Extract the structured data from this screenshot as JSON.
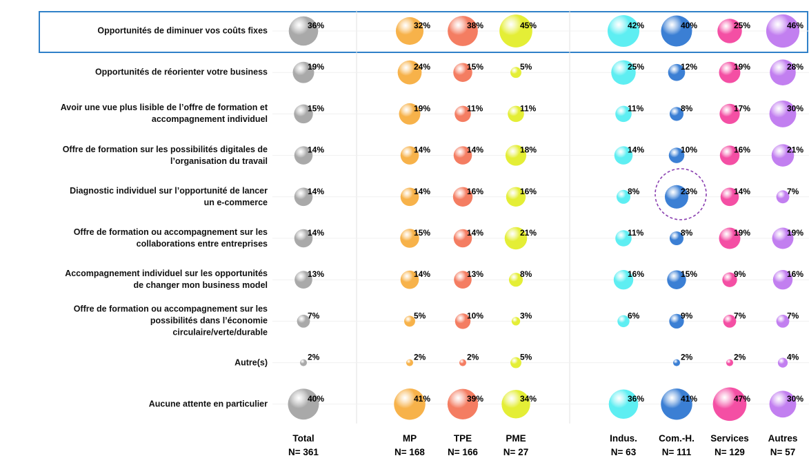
{
  "chart_data": {
    "type": "bubble-matrix",
    "categories": [
      "Opportunités de diminuer vos coûts fixes",
      "Opportunités de réorienter votre business",
      "Avoir une vue plus lisible de l’offre de formation et\naccompagnement individuel",
      "Offre de formation sur les possibilités digitales de\nl’organisation du travail",
      "Diagnostic individuel sur l’opportunité de lancer\nun e-commerce",
      "Offre de formation ou accompagnement sur les\ncollaborations entre entreprises",
      "Accompagnement individuel sur les opportunités\nde changer mon business model",
      "Offre de formation ou accompagnement sur les\npossibilités dans l’économie\ncirculaire/verte/durable",
      "Autre(s)",
      "Aucune attente en particulier"
    ],
    "series": [
      {
        "name": "Total",
        "subtitle": "N= 361",
        "color": "#a9a9a9",
        "values": [
          36,
          19,
          15,
          14,
          14,
          14,
          13,
          7,
          2,
          40
        ],
        "value_labels": [
          "36%",
          "19%",
          "15%",
          "14%",
          "14%",
          "14%",
          "13%",
          "7%",
          "2%",
          "40%"
        ]
      },
      {
        "name": "MP",
        "subtitle": "N= 168",
        "color": "#f7b24a",
        "values": [
          32,
          24,
          19,
          14,
          14,
          15,
          14,
          5,
          2,
          41
        ],
        "value_labels": [
          "32%",
          "24%",
          "19%",
          "14%",
          "14%",
          "15%",
          "14%",
          "5%",
          "2%",
          "41%"
        ]
      },
      {
        "name": "TPE",
        "subtitle": "N= 166",
        "color": "#f47d62",
        "values": [
          38,
          15,
          11,
          14,
          16,
          14,
          13,
          10,
          2,
          39
        ],
        "value_labels": [
          "38%",
          "15%",
          "11%",
          "14%",
          "16%",
          "14%",
          "13%",
          "10%",
          "2%",
          "39%"
        ]
      },
      {
        "name": "PME",
        "subtitle": "N= 27",
        "color": "#e4ee36",
        "values": [
          45,
          5,
          11,
          18,
          16,
          21,
          8,
          3,
          5,
          34
        ],
        "value_labels": [
          "45%",
          "5%",
          "11%",
          "18%",
          "16%",
          "21%",
          "8%",
          "3%",
          "5%",
          "34%"
        ]
      },
      {
        "name": "Indus.",
        "subtitle": "N= 63",
        "color": "#5eeef2",
        "values": [
          42,
          25,
          11,
          14,
          8,
          11,
          16,
          6,
          null,
          36
        ],
        "value_labels": [
          "42%",
          "25%",
          "11%",
          "14%",
          "8%",
          "11%",
          "16%",
          "6%",
          null,
          "36%"
        ]
      },
      {
        "name": "Com.-H.",
        "subtitle": "N= 111",
        "color": "#3b7fd4",
        "values": [
          40,
          12,
          8,
          10,
          23,
          8,
          15,
          9,
          2,
          41
        ],
        "value_labels": [
          "40%",
          "12%",
          "8%",
          "10%",
          "23%",
          "8%",
          "15%",
          "9%",
          "2%",
          "41%"
        ]
      },
      {
        "name": "Services",
        "subtitle": "N= 129",
        "color": "#f44fa4",
        "values": [
          25,
          19,
          17,
          16,
          14,
          19,
          9,
          7,
          2,
          47
        ],
        "value_labels": [
          "25%",
          "19%",
          "17%",
          "16%",
          "14%",
          "19%",
          "9%",
          "7%",
          "2%",
          "47%"
        ]
      },
      {
        "name": "Autres",
        "subtitle": "N= 57",
        "color": "#c27ff0",
        "values": [
          46,
          28,
          30,
          21,
          7,
          19,
          16,
          7,
          4,
          30
        ],
        "value_labels": [
          "46%",
          "28%",
          "30%",
          "21%",
          "7%",
          "19%",
          "16%",
          "7%",
          "4%",
          "30%"
        ]
      }
    ]
  }
}
